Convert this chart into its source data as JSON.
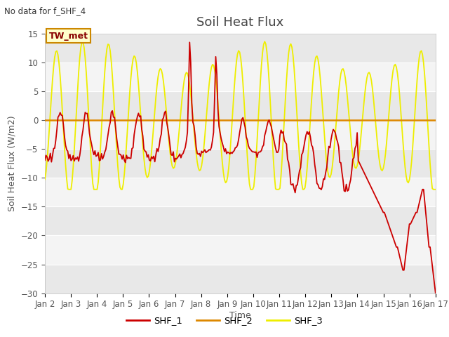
{
  "title": "Soil Heat Flux",
  "no_data_text": "No data for f_SHF_4",
  "ylabel": "Soil Heat Flux (W/m2)",
  "xlabel": "Time",
  "annotation": "TW_met",
  "ylim": [
    -30,
    15
  ],
  "yticks": [
    -30,
    -25,
    -20,
    -15,
    -10,
    -5,
    0,
    5,
    10,
    15
  ],
  "date_labels": [
    "Jan 2",
    "Jan 3",
    "Jan 4",
    "Jan 5",
    "Jan 6",
    "Jan 7",
    "Jan 8",
    "Jan 9",
    "Jan 10",
    "Jan 11",
    "Jan 12",
    "Jan 13",
    "Jan 14",
    "Jan 15",
    "Jan 16",
    "Jan 17"
  ],
  "shf1_color": "#cc0000",
  "shf2_color": "#dd8800",
  "shf3_color": "#eeee00",
  "legend_labels": [
    "SHF_1",
    "SHF_2",
    "SHF_3"
  ],
  "bg_color": "#ffffff",
  "plot_bg_color": "#ffffff",
  "title_fontsize": 13,
  "label_fontsize": 9,
  "tick_fontsize": 8.5
}
